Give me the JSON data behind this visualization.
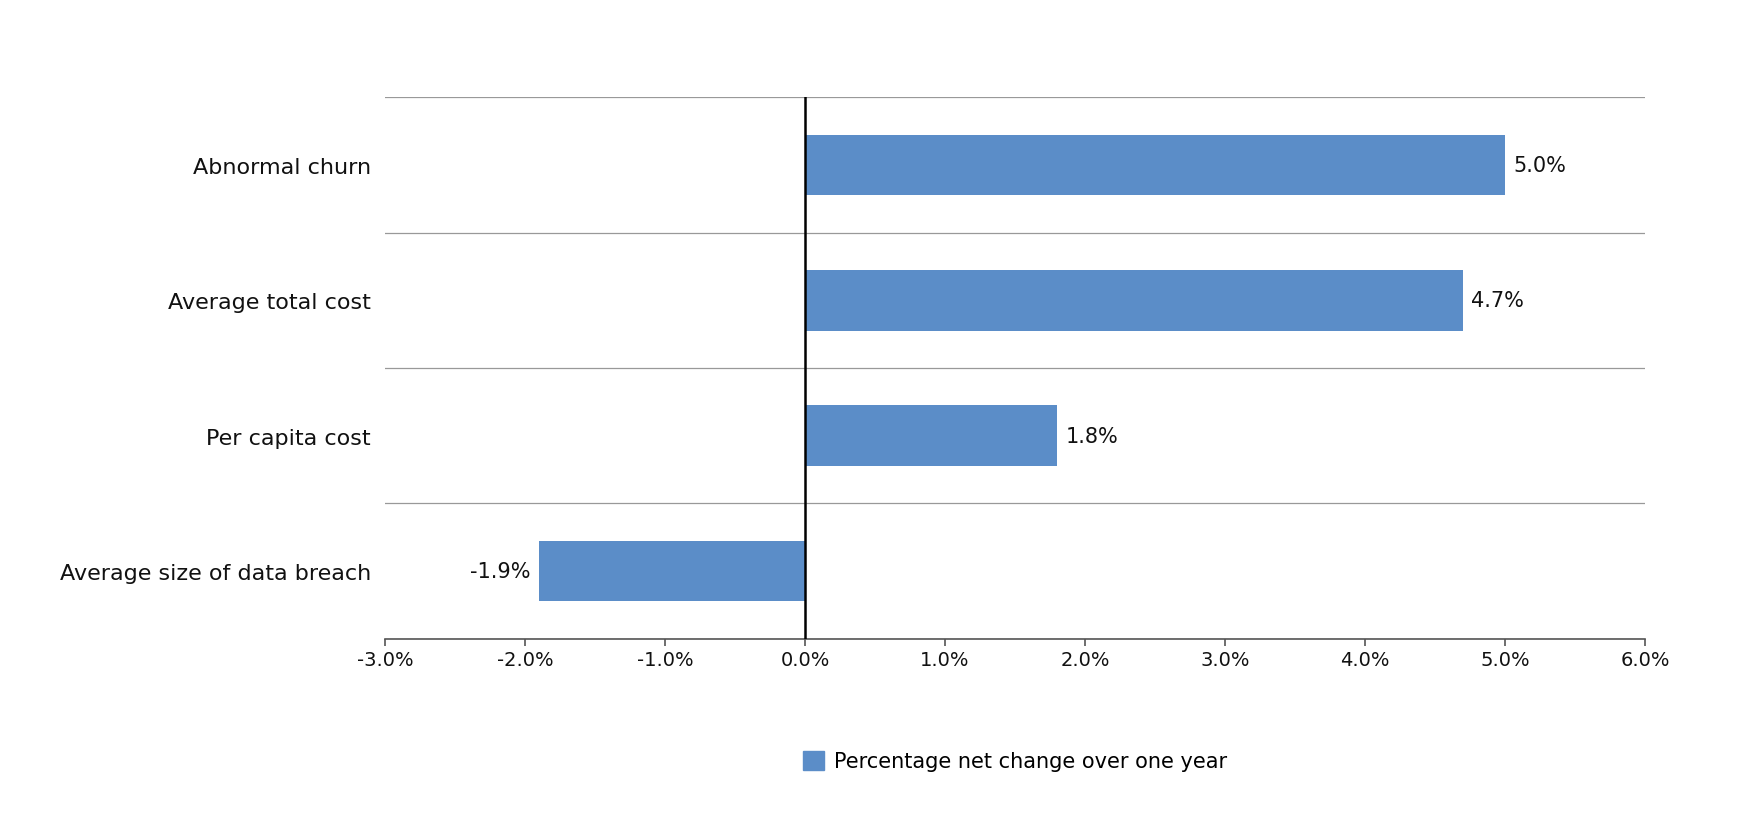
{
  "categories": [
    "Average size of data breach",
    "Per capita cost",
    "Average total cost",
    "Abnormal churn"
  ],
  "values": [
    -1.9,
    1.8,
    4.7,
    5.0
  ],
  "bar_color": "#5b8dc8",
  "bar_height": 0.45,
  "xlim": [
    -3.0,
    6.0
  ],
  "xticks": [
    -3.0,
    -2.0,
    -1.0,
    0.0,
    1.0,
    2.0,
    3.0,
    4.0,
    5.0,
    6.0
  ],
  "xtick_labels": [
    "-3.0%",
    "-2.0%",
    "-1.0%",
    "0.0%",
    "1.0%",
    "2.0%",
    "3.0%",
    "4.0%",
    "5.0%",
    "6.0%"
  ],
  "ylabel_fontsize": 16,
  "tick_fontsize": 14,
  "legend_label": "Percentage net change over one year",
  "legend_fontsize": 15,
  "value_label_fontsize": 15,
  "value_labels": [
    "-1.9%",
    "1.8%",
    "4.7%",
    "5.0%"
  ],
  "background_color": "#ffffff",
  "grid_color": "#999999",
  "spine_color": "#555555",
  "zero_line_color": "#000000",
  "label_color": "#111111"
}
